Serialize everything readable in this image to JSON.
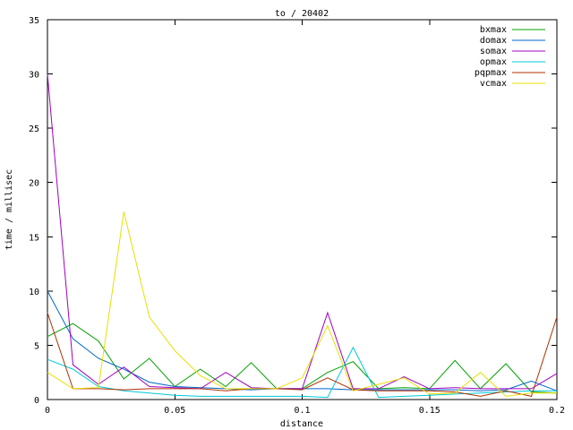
{
  "chart_data": {
    "type": "line",
    "title": "to / 20402",
    "xlabel": "distance",
    "ylabel": "time / millisec",
    "xlim": [
      0,
      0.2
    ],
    "ylim": [
      0,
      35
    ],
    "xticks": [
      {
        "value": 0,
        "label": "0"
      },
      {
        "value": 0.05,
        "label": "0.05"
      },
      {
        "value": 0.1,
        "label": "0.1"
      },
      {
        "value": 0.15,
        "label": "0.15"
      },
      {
        "value": 0.2,
        "label": "0.2"
      }
    ],
    "yticks": [
      {
        "value": 0,
        "label": "0"
      },
      {
        "value": 5,
        "label": "5"
      },
      {
        "value": 10,
        "label": "10"
      },
      {
        "value": 15,
        "label": "15"
      },
      {
        "value": 20,
        "label": "20"
      },
      {
        "value": 25,
        "label": "25"
      },
      {
        "value": 30,
        "label": "30"
      },
      {
        "value": 35,
        "label": "35"
      }
    ],
    "grid": false,
    "legend_position": "top-right",
    "x": [
      0,
      0.01,
      0.02,
      0.03,
      0.04,
      0.05,
      0.06,
      0.07,
      0.08,
      0.09,
      0.1,
      0.11,
      0.12,
      0.13,
      0.14,
      0.15,
      0.16,
      0.17,
      0.18,
      0.19,
      0.2
    ],
    "series": [
      {
        "name": "bxmax",
        "color": "#00a000",
        "values": [
          5.8,
          7.0,
          5.4,
          1.9,
          3.8,
          1.2,
          2.8,
          1.2,
          3.4,
          1.0,
          1.0,
          2.5,
          3.5,
          1.0,
          1.1,
          1.0,
          3.6,
          1.0,
          3.3,
          0.7,
          0.6
        ]
      },
      {
        "name": "domax",
        "color": "#0066cc",
        "values": [
          10.0,
          5.6,
          3.8,
          2.8,
          1.6,
          1.2,
          1.1,
          1.0,
          0.9,
          1.0,
          1.0,
          1.0,
          0.9,
          0.9,
          0.9,
          0.9,
          0.9,
          0.8,
          0.9,
          1.7,
          0.8
        ]
      },
      {
        "name": "somax",
        "color": "#a000c0",
        "values": [
          30.0,
          3.2,
          1.4,
          3.0,
          1.2,
          1.1,
          1.0,
          2.5,
          1.1,
          1.0,
          1.0,
          8.0,
          1.0,
          1.0,
          2.1,
          1.0,
          1.1,
          1.0,
          1.0,
          1.0,
          2.4
        ]
      },
      {
        "name": "opmax",
        "color": "#00c8d8",
        "values": [
          3.7,
          2.8,
          1.2,
          0.8,
          0.6,
          0.4,
          0.3,
          0.3,
          0.3,
          0.3,
          0.3,
          0.2,
          4.8,
          0.2,
          0.3,
          0.4,
          0.5,
          0.6,
          0.7,
          0.8,
          0.8
        ]
      },
      {
        "name": "pqpmax",
        "color": "#b03000",
        "values": [
          8.0,
          1.0,
          1.0,
          0.9,
          1.0,
          1.0,
          1.0,
          0.8,
          1.0,
          1.0,
          0.9,
          2.0,
          0.9,
          0.8,
          0.8,
          0.8,
          0.7,
          0.3,
          0.8,
          0.3,
          7.6
        ]
      },
      {
        "name": "vcmax",
        "color": "#e8e000",
        "values": [
          2.5,
          1.0,
          1.1,
          17.3,
          7.6,
          4.5,
          2.2,
          1.0,
          1.0,
          1.0,
          2.0,
          6.8,
          0.8,
          1.4,
          2.0,
          0.5,
          0.6,
          2.5,
          0.3,
          0.6,
          0.6
        ]
      }
    ]
  }
}
